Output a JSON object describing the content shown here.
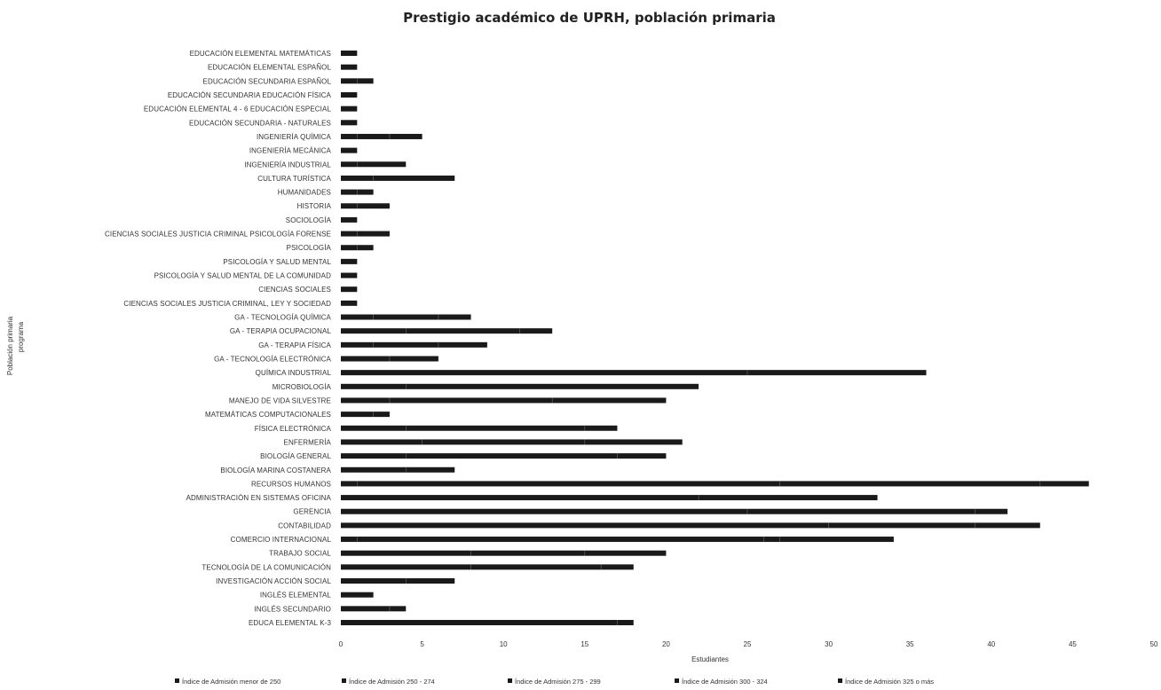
{
  "chart_data": {
    "type": "bar",
    "orientation": "horizontal",
    "stacked": true,
    "title": "Prestigio académico de UPRH, población primaria",
    "xlabel": "Estudiantes",
    "ylabel_lines": [
      "Población primaria",
      "programa"
    ],
    "xlim": [
      0,
      50
    ],
    "xticks": [
      0,
      5,
      10,
      15,
      20,
      25,
      30,
      35,
      40,
      45,
      50
    ],
    "grid": false,
    "legend_position": "bottom",
    "categories": [
      "EDUCACIÓN ELEMENTAL MATEMÁTICAS",
      "EDUCACIÓN ELEMENTAL ESPAÑOL",
      "EDUCACIÓN SECUNDARIA ESPAÑOL",
      "EDUCACIÓN SECUNDARIA EDUCACIÓN FÍSICA",
      "EDUCACIÓN ELEMENTAL 4 - 6 EDUCACIÓN ESPECIAL",
      "EDUCACIÓN SECUNDARIA - NATURALES",
      "INGENIERÍA QUÍMICA",
      "INGENIERÍA MECÁNICA",
      "INGENIERÍA INDUSTRIAL",
      "CULTURA TURÍSTICA",
      "HUMANIDADES",
      "HISTORIA",
      "SOCIOLOGÍA",
      "CIENCIAS SOCIALES JUSTICIA CRIMINAL PSICOLOGÍA FORENSE",
      "PSICOLOGÍA",
      "PSICOLOGÍA Y SALUD MENTAL",
      "PSICOLOGÍA Y SALUD MENTAL DE LA COMUNIDAD",
      "CIENCIAS SOCIALES",
      "CIENCIAS SOCIALES JUSTICIA CRIMINAL, LEY Y SOCIEDAD",
      "GA - TECNOLOGÍA QUÍMICA",
      "GA - TERAPIA OCUPACIONAL",
      "GA - TERAPIA FÍSICA",
      "GA - TECNOLOGÍA ELECTRÓNICA",
      "QUÍMICA INDUSTRIAL",
      "MICROBIOLOGÍA",
      "MANEJO DE VIDA SILVESTRE",
      "MATEMÁTICAS COMPUTACIONALES",
      "FÍSICA ELECTRÓNICA",
      "ENFERMERÍA",
      "BIOLOGÍA GENERAL",
      "BIOLOGÍA MARINA COSTANERA",
      "RECURSOS HUMANOS",
      "ADMINISTRACIÓN EN SISTEMAS OFICINA",
      "GERENCIA",
      "CONTABILIDAD",
      "COMERCIO INTERNACIONAL",
      "TRABAJO SOCIAL",
      "TECNOLOGÍA DE LA COMUNICACIÓN",
      "INVESTIGACIÓN ACCIÓN SOCIAL",
      "INGLÉS ELEMENTAL",
      "INGLÉS SECUNDARIO",
      "EDUCA ELEMENTAL K-3"
    ],
    "series": [
      {
        "name": "Índice de Admisión menor de 250",
        "values": [
          0,
          0,
          0,
          0,
          0,
          0,
          0,
          0,
          0,
          0,
          0,
          0,
          0,
          0,
          0,
          0,
          0,
          0,
          0,
          0,
          0,
          0,
          0,
          0,
          0,
          0,
          0,
          0,
          0,
          0,
          0,
          1,
          0,
          0,
          0,
          1,
          0,
          0,
          0,
          0,
          0,
          0
        ]
      },
      {
        "name": "Índice de Admisión 250 - 274",
        "values": [
          0,
          0,
          0,
          0,
          0,
          0,
          0,
          0,
          0,
          0,
          0,
          0,
          0,
          0,
          0,
          0,
          0,
          0,
          0,
          0,
          0,
          0,
          0,
          0,
          0,
          0,
          0,
          0,
          0,
          0,
          0,
          0,
          0,
          0,
          0,
          0,
          0,
          0,
          0,
          0,
          0,
          0
        ]
      },
      {
        "name": "Índice de Admisión 275 - 299",
        "values": [
          1,
          1,
          1,
          1,
          1,
          1,
          1,
          1,
          1,
          2,
          1,
          1,
          1,
          1,
          1,
          1,
          1,
          1,
          1,
          2,
          4,
          2,
          3,
          25,
          4,
          3,
          2,
          4,
          5,
          4,
          4,
          26,
          22,
          25,
          30,
          25,
          8,
          8,
          4,
          2,
          3,
          17
        ]
      },
      {
        "name": "Índice de Admisión 300 - 324",
        "values": [
          0,
          0,
          0,
          0,
          0,
          0,
          2,
          0,
          0,
          0,
          0,
          0,
          0,
          0,
          0,
          0,
          0,
          0,
          0,
          4,
          7,
          4,
          0,
          11,
          0,
          10,
          0,
          11,
          10,
          13,
          0,
          16,
          11,
          14,
          9,
          1,
          7,
          8,
          0,
          0,
          1,
          1
        ]
      },
      {
        "name": "Índice de Admisión 325 o más",
        "values": [
          0,
          0,
          1,
          0,
          0,
          0,
          2,
          0,
          3,
          5,
          1,
          2,
          0,
          2,
          1,
          0,
          0,
          0,
          0,
          2,
          2,
          3,
          3,
          0,
          18,
          7,
          1,
          2,
          6,
          3,
          3,
          3,
          0,
          2,
          4,
          7,
          5,
          2,
          3,
          0,
          0,
          0
        ]
      }
    ]
  }
}
